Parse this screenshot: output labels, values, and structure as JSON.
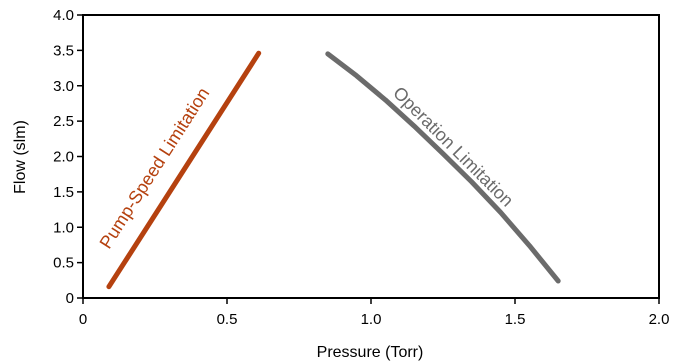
{
  "chart_data": {
    "type": "line",
    "xlabel": "Pressure (Torr)",
    "ylabel": "Flow (slm)",
    "xlim": [
      0,
      2.0
    ],
    "ylim": [
      0,
      4.0
    ],
    "x_ticks": [
      "0",
      "0.5",
      "1.0",
      "1.5",
      "2.0"
    ],
    "y_ticks": [
      "0",
      "0.5",
      "1.0",
      "1.5",
      "2.0",
      "2.5",
      "3.0",
      "3.5",
      "4.0"
    ],
    "grid": false,
    "legend": "none",
    "series": [
      {
        "name": "Pump-Speed Limitation",
        "color": "#b5410f",
        "x": [
          0.09,
          0.61
        ],
        "y": [
          0.16,
          3.46
        ]
      },
      {
        "name": "Operation Limitation",
        "color": "#6b6b6b",
        "x": [
          0.85,
          0.95,
          1.05,
          1.15,
          1.25,
          1.35,
          1.45,
          1.55,
          1.65
        ],
        "y": [
          3.45,
          3.14,
          2.8,
          2.43,
          2.04,
          1.64,
          1.21,
          0.74,
          0.24
        ]
      }
    ]
  }
}
